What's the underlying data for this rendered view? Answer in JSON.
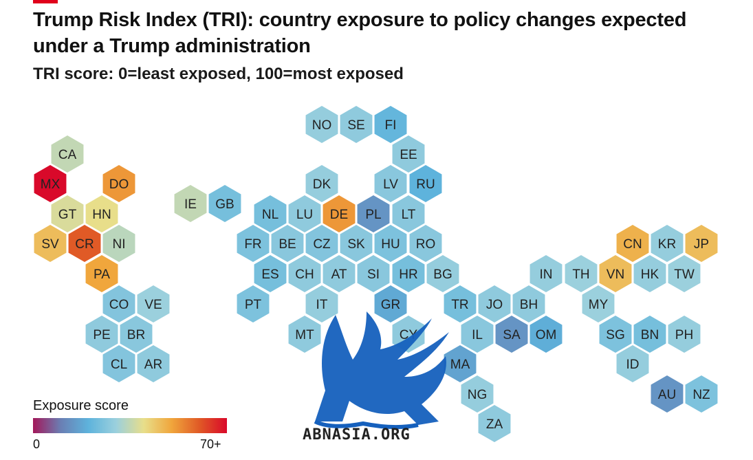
{
  "header": {
    "title": "Trump Risk Index (TRI): country exposure to policy changes expected under a Trump administration",
    "subtitle": "TRI score: 0=least exposed, 100=most exposed"
  },
  "legend": {
    "title": "Exposure score",
    "min_label": "0",
    "max_label": "70+",
    "colors": [
      "#a3185a",
      "#6a7fb4",
      "#5eb3dc",
      "#9bd0dd",
      "#e8de8a",
      "#f0a63c",
      "#e05a26",
      "#d9092a"
    ]
  },
  "watermark": {
    "text": "ABNASIA.ORG",
    "color": "#1560bd"
  },
  "chart_data": {
    "type": "hex tile map",
    "title": "Trump Risk Index (TRI): country exposure to policy changes expected under a Trump administration",
    "subtitle": "TRI score: 0=least exposed, 100=most exposed",
    "colour_scale": {
      "label": "Exposure score",
      "min": 0,
      "max": 70,
      "max_label": "70+"
    },
    "countries": [
      {
        "code": "CA",
        "score": 35
      },
      {
        "code": "MX",
        "score": 70
      },
      {
        "code": "DO",
        "score": 52
      },
      {
        "code": "GT",
        "score": 38
      },
      {
        "code": "HN",
        "score": 40
      },
      {
        "code": "SV",
        "score": 46
      },
      {
        "code": "CR",
        "score": 60
      },
      {
        "code": "NI",
        "score": 34
      },
      {
        "code": "PA",
        "score": 50
      },
      {
        "code": "CO",
        "score": 26
      },
      {
        "code": "VE",
        "score": 30
      },
      {
        "code": "PE",
        "score": 28
      },
      {
        "code": "BR",
        "score": 27
      },
      {
        "code": "CL",
        "score": 26
      },
      {
        "code": "AR",
        "score": 28
      },
      {
        "code": "IE",
        "score": 35
      },
      {
        "code": "GB",
        "score": 24
      },
      {
        "code": "NO",
        "score": 29
      },
      {
        "code": "SE",
        "score": 28
      },
      {
        "code": "FI",
        "score": 21
      },
      {
        "code": "EE",
        "score": 28
      },
      {
        "code": "DK",
        "score": 29
      },
      {
        "code": "LV",
        "score": 27
      },
      {
        "code": "RU",
        "score": 20
      },
      {
        "code": "NL",
        "score": 24
      },
      {
        "code": "LU",
        "score": 28
      },
      {
        "code": "DE",
        "score": 52
      },
      {
        "code": "PL",
        "score": 14
      },
      {
        "code": "LT",
        "score": 27
      },
      {
        "code": "FR",
        "score": 25
      },
      {
        "code": "BE",
        "score": 27
      },
      {
        "code": "CZ",
        "score": 26
      },
      {
        "code": "SK",
        "score": 27
      },
      {
        "code": "HU",
        "score": 25
      },
      {
        "code": "RO",
        "score": 27
      },
      {
        "code": "ES",
        "score": 24
      },
      {
        "code": "CH",
        "score": 28
      },
      {
        "code": "AT",
        "score": 28
      },
      {
        "code": "SI",
        "score": 27
      },
      {
        "code": "HR",
        "score": 24
      },
      {
        "code": "BG",
        "score": 29
      },
      {
        "code": "PT",
        "score": 25
      },
      {
        "code": "IT",
        "score": 29
      },
      {
        "code": "GR",
        "score": 18
      },
      {
        "code": "MT",
        "score": 28
      },
      {
        "code": "CY",
        "score": 28
      },
      {
        "code": "TR",
        "score": 24
      },
      {
        "code": "JO",
        "score": 28
      },
      {
        "code": "BH",
        "score": 28
      },
      {
        "code": "IL",
        "score": 27
      },
      {
        "code": "SA",
        "score": 14
      },
      {
        "code": "OM",
        "score": 19
      },
      {
        "code": "MA",
        "score": 17
      },
      {
        "code": "NG",
        "score": 29
      },
      {
        "code": "ZA",
        "score": 28
      },
      {
        "code": "IN",
        "score": 29
      },
      {
        "code": "TH",
        "score": 30
      },
      {
        "code": "VN",
        "score": 46
      },
      {
        "code": "CN",
        "score": 48
      },
      {
        "code": "KR",
        "score": 29
      },
      {
        "code": "JP",
        "score": 46
      },
      {
        "code": "HK",
        "score": 29
      },
      {
        "code": "TW",
        "score": 30
      },
      {
        "code": "MY",
        "score": 30
      },
      {
        "code": "SG",
        "score": 25
      },
      {
        "code": "BN",
        "score": 24
      },
      {
        "code": "PH",
        "score": 29
      },
      {
        "code": "ID",
        "score": 29
      },
      {
        "code": "AU",
        "score": 14
      },
      {
        "code": "NZ",
        "score": 25
      }
    ]
  }
}
